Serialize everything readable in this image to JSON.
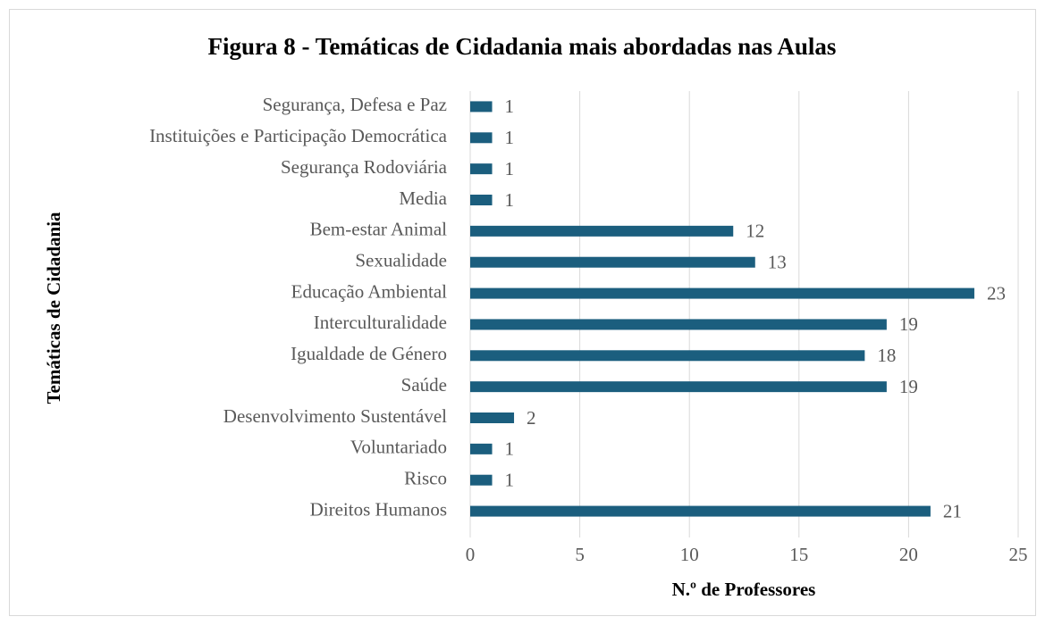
{
  "chart_data": {
    "type": "bar",
    "orientation": "horizontal",
    "title": "Figura 8 - Temáticas de Cidadania mais abordadas nas Aulas",
    "xlabel": "N.º de Professores",
    "ylabel": "Temáticas de Cidadania",
    "categories": [
      "Segurança, Defesa e Paz",
      "Instituições e Participação Democrática",
      "Segurança Rodoviária",
      "Media",
      "Bem-estar Animal",
      "Sexualidade",
      "Educação Ambiental",
      "Interculturalidade",
      "Igualdade de Género",
      "Saúde",
      "Desenvolvimento Sustentável",
      "Voluntariado",
      "Risco",
      "Direitos Humanos"
    ],
    "values": [
      1,
      1,
      1,
      1,
      12,
      13,
      23,
      19,
      18,
      19,
      2,
      1,
      1,
      21
    ],
    "color": "#1b5e7e",
    "xlim": [
      0,
      25
    ],
    "xticks": [
      0,
      5,
      10,
      15,
      20,
      25
    ],
    "grid": true
  }
}
